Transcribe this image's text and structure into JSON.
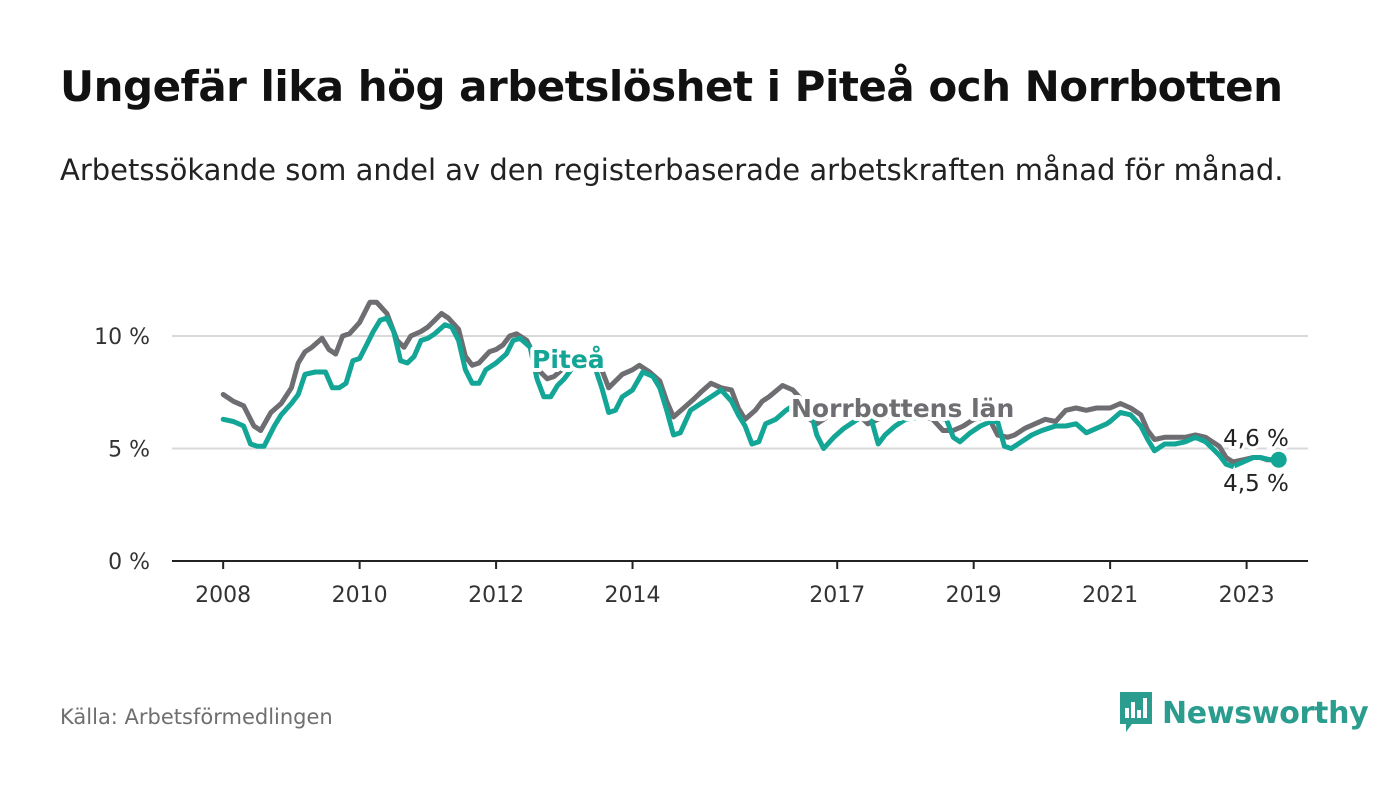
{
  "header": {
    "title": "Ungefär lika hög arbetslöshet i Piteå och Norrbotten",
    "subtitle": "Arbetssökande som andel av den registerbaserade arbetskraften månad för månad."
  },
  "footer": {
    "source": "Källa: Arbetsförmedlingen",
    "brand": "Newsworthy"
  },
  "colors": {
    "pitea": "#13a596",
    "norrbotten": "#6d6d72",
    "grid": "#d9d9d9",
    "axis": "#222222",
    "brand": "#2a9d8f"
  },
  "chart_data": {
    "type": "line",
    "title": "Ungefär lika hög arbetslöshet i Piteå och Norrbotten",
    "xlabel": "",
    "ylabel": "",
    "ylim": [
      0,
      11.6
    ],
    "xlim": [
      2007.25,
      2023.9
    ],
    "grid": true,
    "y_ticks": [
      {
        "value": 0,
        "label": "0 %"
      },
      {
        "value": 5,
        "label": "5 %"
      },
      {
        "value": 10,
        "label": "10 %"
      }
    ],
    "x_ticks": [
      {
        "value": 2008,
        "label": "2008"
      },
      {
        "value": 2010,
        "label": "2010"
      },
      {
        "value": 2012,
        "label": "2012"
      },
      {
        "value": 2014,
        "label": "2014"
      },
      {
        "value": 2017,
        "label": "2017"
      },
      {
        "value": 2019,
        "label": "2019"
      },
      {
        "value": 2021,
        "label": "2021"
      },
      {
        "value": 2023,
        "label": "2023"
      }
    ],
    "series": [
      {
        "name": "Norrbottens län",
        "label": "Norrbottens län",
        "end_label": "4,6 %",
        "points": [
          [
            2008.0,
            7.4
          ],
          [
            2008.15,
            7.1
          ],
          [
            2008.3,
            6.9
          ],
          [
            2008.45,
            6.0
          ],
          [
            2008.55,
            5.8
          ],
          [
            2008.7,
            6.6
          ],
          [
            2008.85,
            7.0
          ],
          [
            2009.0,
            7.7
          ],
          [
            2009.1,
            8.8
          ],
          [
            2009.2,
            9.3
          ],
          [
            2009.3,
            9.5
          ],
          [
            2009.45,
            9.9
          ],
          [
            2009.55,
            9.4
          ],
          [
            2009.65,
            9.2
          ],
          [
            2009.75,
            10.0
          ],
          [
            2009.85,
            10.1
          ],
          [
            2010.0,
            10.6
          ],
          [
            2010.15,
            11.5
          ],
          [
            2010.25,
            11.5
          ],
          [
            2010.4,
            11.0
          ],
          [
            2010.55,
            9.8
          ],
          [
            2010.65,
            9.5
          ],
          [
            2010.75,
            10.0
          ],
          [
            2010.9,
            10.2
          ],
          [
            2011.0,
            10.4
          ],
          [
            2011.1,
            10.7
          ],
          [
            2011.2,
            11.0
          ],
          [
            2011.3,
            10.8
          ],
          [
            2011.45,
            10.3
          ],
          [
            2011.55,
            9.1
          ],
          [
            2011.65,
            8.7
          ],
          [
            2011.75,
            8.8
          ],
          [
            2011.9,
            9.3
          ],
          [
            2012.0,
            9.4
          ],
          [
            2012.1,
            9.6
          ],
          [
            2012.2,
            10.0
          ],
          [
            2012.3,
            10.1
          ],
          [
            2012.45,
            9.8
          ],
          [
            2012.55,
            9.2
          ],
          [
            2012.65,
            8.4
          ],
          [
            2012.75,
            8.1
          ],
          [
            2012.85,
            8.2
          ],
          [
            2013.0,
            8.6
          ],
          [
            2013.2,
            8.8
          ],
          [
            2013.4,
            8.9
          ],
          [
            2013.55,
            8.5
          ],
          [
            2013.65,
            7.7
          ],
          [
            2013.75,
            8.0
          ],
          [
            2013.85,
            8.3
          ],
          [
            2014.0,
            8.5
          ],
          [
            2014.1,
            8.7
          ],
          [
            2014.25,
            8.4
          ],
          [
            2014.4,
            8.0
          ],
          [
            2014.5,
            7.1
          ],
          [
            2014.6,
            6.4
          ],
          [
            2014.75,
            6.8
          ],
          [
            2014.9,
            7.2
          ],
          [
            2015.0,
            7.5
          ],
          [
            2015.15,
            7.9
          ],
          [
            2015.3,
            7.7
          ],
          [
            2015.45,
            7.6
          ],
          [
            2015.55,
            6.8
          ],
          [
            2015.65,
            6.3
          ],
          [
            2015.8,
            6.7
          ],
          [
            2015.9,
            7.1
          ],
          [
            2016.0,
            7.3
          ],
          [
            2016.2,
            7.8
          ],
          [
            2016.35,
            7.6
          ],
          [
            2016.5,
            7.1
          ],
          [
            2016.6,
            6.3
          ],
          [
            2016.7,
            6.1
          ],
          [
            2016.85,
            6.4
          ],
          [
            2017.0,
            6.6
          ],
          [
            2017.2,
            6.8
          ],
          [
            2017.35,
            6.4
          ],
          [
            2017.45,
            6.1
          ],
          [
            2017.6,
            6.3
          ],
          [
            2017.8,
            6.5
          ],
          [
            2018.0,
            6.4
          ],
          [
            2018.2,
            6.5
          ],
          [
            2018.4,
            6.3
          ],
          [
            2018.55,
            5.8
          ],
          [
            2018.7,
            5.8
          ],
          [
            2018.85,
            6.0
          ],
          [
            2019.0,
            6.3
          ],
          [
            2019.15,
            6.4
          ],
          [
            2019.25,
            6.2
          ],
          [
            2019.35,
            5.6
          ],
          [
            2019.5,
            5.5
          ],
          [
            2019.6,
            5.6
          ],
          [
            2019.75,
            5.9
          ],
          [
            2019.9,
            6.1
          ],
          [
            2020.05,
            6.3
          ],
          [
            2020.2,
            6.2
          ],
          [
            2020.35,
            6.7
          ],
          [
            2020.5,
            6.8
          ],
          [
            2020.65,
            6.7
          ],
          [
            2020.8,
            6.8
          ],
          [
            2020.95,
            6.8
          ],
          [
            2021.0,
            6.8
          ],
          [
            2021.15,
            7.0
          ],
          [
            2021.3,
            6.8
          ],
          [
            2021.45,
            6.5
          ],
          [
            2021.55,
            5.8
          ],
          [
            2021.65,
            5.4
          ],
          [
            2021.8,
            5.5
          ],
          [
            2021.95,
            5.5
          ],
          [
            2022.1,
            5.5
          ],
          [
            2022.25,
            5.6
          ],
          [
            2022.4,
            5.5
          ],
          [
            2022.5,
            5.3
          ],
          [
            2022.6,
            5.1
          ],
          [
            2022.7,
            4.6
          ],
          [
            2022.8,
            4.4
          ],
          [
            2022.95,
            4.5
          ],
          [
            2023.1,
            4.6
          ],
          [
            2023.2,
            4.6
          ],
          [
            2023.3,
            4.5
          ],
          [
            2023.4,
            4.5
          ],
          [
            2023.5,
            4.6
          ]
        ]
      },
      {
        "name": "Piteå",
        "label": "Piteå",
        "end_label": "4,5 %",
        "points": [
          [
            2008.0,
            6.3
          ],
          [
            2008.15,
            6.2
          ],
          [
            2008.3,
            6.0
          ],
          [
            2008.4,
            5.2
          ],
          [
            2008.5,
            5.1
          ],
          [
            2008.6,
            5.1
          ],
          [
            2008.75,
            6.0
          ],
          [
            2008.85,
            6.5
          ],
          [
            2009.0,
            7.0
          ],
          [
            2009.1,
            7.4
          ],
          [
            2009.2,
            8.3
          ],
          [
            2009.35,
            8.4
          ],
          [
            2009.5,
            8.4
          ],
          [
            2009.6,
            7.7
          ],
          [
            2009.7,
            7.7
          ],
          [
            2009.8,
            7.9
          ],
          [
            2009.9,
            8.9
          ],
          [
            2010.0,
            9.0
          ],
          [
            2010.1,
            9.6
          ],
          [
            2010.2,
            10.2
          ],
          [
            2010.3,
            10.7
          ],
          [
            2010.4,
            10.8
          ],
          [
            2010.5,
            10.2
          ],
          [
            2010.6,
            8.9
          ],
          [
            2010.7,
            8.8
          ],
          [
            2010.8,
            9.1
          ],
          [
            2010.9,
            9.8
          ],
          [
            2011.0,
            9.9
          ],
          [
            2011.1,
            10.1
          ],
          [
            2011.25,
            10.5
          ],
          [
            2011.35,
            10.4
          ],
          [
            2011.45,
            9.8
          ],
          [
            2011.55,
            8.5
          ],
          [
            2011.65,
            7.9
          ],
          [
            2011.75,
            7.9
          ],
          [
            2011.85,
            8.5
          ],
          [
            2012.0,
            8.8
          ],
          [
            2012.15,
            9.2
          ],
          [
            2012.25,
            9.8
          ],
          [
            2012.35,
            9.9
          ],
          [
            2012.5,
            9.5
          ],
          [
            2012.6,
            8.1
          ],
          [
            2012.7,
            7.3
          ],
          [
            2012.8,
            7.3
          ],
          [
            2012.9,
            7.8
          ],
          [
            2013.0,
            8.1
          ],
          [
            2013.15,
            8.7
          ],
          [
            2013.3,
            8.8
          ],
          [
            2013.45,
            8.6
          ],
          [
            2013.55,
            7.7
          ],
          [
            2013.65,
            6.6
          ],
          [
            2013.75,
            6.7
          ],
          [
            2013.85,
            7.3
          ],
          [
            2014.0,
            7.6
          ],
          [
            2014.15,
            8.4
          ],
          [
            2014.3,
            8.2
          ],
          [
            2014.4,
            7.7
          ],
          [
            2014.5,
            6.7
          ],
          [
            2014.6,
            5.6
          ],
          [
            2014.7,
            5.7
          ],
          [
            2014.85,
            6.7
          ],
          [
            2015.0,
            7.0
          ],
          [
            2015.15,
            7.3
          ],
          [
            2015.3,
            7.6
          ],
          [
            2015.45,
            7.1
          ],
          [
            2015.55,
            6.5
          ],
          [
            2015.65,
            6.0
          ],
          [
            2015.75,
            5.2
          ],
          [
            2015.85,
            5.3
          ],
          [
            2015.95,
            6.1
          ],
          [
            2016.1,
            6.3
          ],
          [
            2016.25,
            6.7
          ],
          [
            2016.4,
            7.0
          ],
          [
            2016.5,
            7.1
          ],
          [
            2016.6,
            6.8
          ],
          [
            2016.7,
            5.6
          ],
          [
            2016.8,
            5.0
          ],
          [
            2016.95,
            5.5
          ],
          [
            2017.1,
            5.9
          ],
          [
            2017.25,
            6.2
          ],
          [
            2017.4,
            6.5
          ],
          [
            2017.5,
            6.3
          ],
          [
            2017.6,
            5.2
          ],
          [
            2017.7,
            5.6
          ],
          [
            2017.85,
            6.0
          ],
          [
            2018.0,
            6.3
          ],
          [
            2018.2,
            6.4
          ],
          [
            2018.4,
            6.4
          ],
          [
            2018.6,
            6.3
          ],
          [
            2018.7,
            5.5
          ],
          [
            2018.8,
            5.3
          ],
          [
            2018.95,
            5.7
          ],
          [
            2019.1,
            6.0
          ],
          [
            2019.25,
            6.2
          ],
          [
            2019.35,
            6.2
          ],
          [
            2019.45,
            5.1
          ],
          [
            2019.55,
            5.0
          ],
          [
            2019.7,
            5.3
          ],
          [
            2019.85,
            5.6
          ],
          [
            2020.0,
            5.8
          ],
          [
            2020.2,
            6.0
          ],
          [
            2020.35,
            6.0
          ],
          [
            2020.5,
            6.1
          ],
          [
            2020.65,
            5.7
          ],
          [
            2020.8,
            5.9
          ],
          [
            2020.95,
            6.1
          ],
          [
            2021.0,
            6.2
          ],
          [
            2021.15,
            6.6
          ],
          [
            2021.3,
            6.5
          ],
          [
            2021.45,
            6.0
          ],
          [
            2021.55,
            5.4
          ],
          [
            2021.65,
            4.9
          ],
          [
            2021.8,
            5.2
          ],
          [
            2021.95,
            5.2
          ],
          [
            2022.1,
            5.3
          ],
          [
            2022.25,
            5.5
          ],
          [
            2022.4,
            5.3
          ],
          [
            2022.5,
            5.0
          ],
          [
            2022.6,
            4.7
          ],
          [
            2022.7,
            4.3
          ],
          [
            2022.8,
            4.2
          ],
          [
            2022.95,
            4.4
          ],
          [
            2023.1,
            4.6
          ],
          [
            2023.2,
            4.6
          ],
          [
            2023.35,
            4.5
          ],
          [
            2023.5,
            4.5
          ]
        ]
      }
    ]
  }
}
